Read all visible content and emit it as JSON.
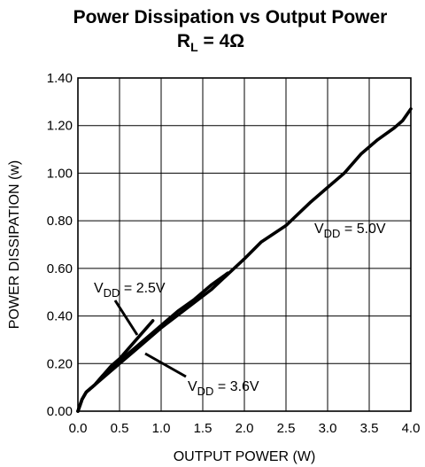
{
  "chart_data": {
    "type": "line",
    "title": "Power Dissipation vs Output Power",
    "subtitle": {
      "prefix": "R",
      "sub": "L",
      "suffix": " = 4Ω"
    },
    "xlabel": "OUTPUT POWER (W)",
    "ylabel": "POWER DISSIPATION (w)",
    "xlim": [
      0,
      4.0
    ],
    "ylim": [
      0,
      1.4
    ],
    "grid": true,
    "x_ticks": [
      "0.0",
      "0.5",
      "1.0",
      "1.5",
      "2.0",
      "2.5",
      "3.0",
      "3.5",
      "4.0"
    ],
    "y_ticks": [
      "0.00",
      "0.20",
      "0.40",
      "0.60",
      "0.80",
      "1.00",
      "1.20",
      "1.40"
    ],
    "series": [
      {
        "name": "V_DD = 2.5V",
        "label": {
          "prefix": "V",
          "sub": "DD",
          "suffix": " = 2.5V"
        },
        "x": [
          0.0,
          0.05,
          0.1,
          0.2,
          0.3,
          0.4,
          0.5,
          0.6,
          0.7,
          0.8,
          0.9
        ],
        "y": [
          0.0,
          0.05,
          0.08,
          0.11,
          0.15,
          0.19,
          0.22,
          0.26,
          0.3,
          0.34,
          0.38
        ]
      },
      {
        "name": "V_DD = 3.6V",
        "label": {
          "prefix": "V",
          "sub": "DD",
          "suffix": " = 3.6V"
        },
        "x": [
          0.0,
          0.05,
          0.1,
          0.2,
          0.3,
          0.4,
          0.5,
          0.6,
          0.7,
          0.8,
          0.9,
          1.0,
          1.2,
          1.4,
          1.6,
          1.8
        ],
        "y": [
          0.0,
          0.05,
          0.08,
          0.11,
          0.15,
          0.18,
          0.21,
          0.24,
          0.27,
          0.3,
          0.33,
          0.36,
          0.42,
          0.47,
          0.53,
          0.58
        ]
      },
      {
        "name": "V_DD = 5.0V",
        "label": {
          "prefix": "V",
          "sub": "DD",
          "suffix": " = 5.0V"
        },
        "x": [
          0.0,
          0.05,
          0.1,
          0.2,
          0.3,
          0.5,
          0.7,
          1.0,
          1.3,
          1.6,
          2.0,
          2.2,
          2.5,
          2.8,
          3.0,
          3.2,
          3.4,
          3.6,
          3.8,
          3.9,
          4.0
        ],
        "y": [
          0.0,
          0.05,
          0.08,
          0.11,
          0.14,
          0.2,
          0.26,
          0.35,
          0.43,
          0.51,
          0.64,
          0.71,
          0.78,
          0.88,
          0.94,
          1.0,
          1.08,
          1.14,
          1.19,
          1.22,
          1.27
        ]
      }
    ]
  }
}
